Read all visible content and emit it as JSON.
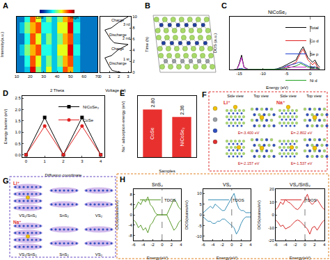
{
  "chart_data": [
    {
      "panel": "A",
      "type": "heatmap",
      "xlabel": "2 Theta",
      "ylabel": "Intensity(a.u.)",
      "x": [
        10,
        14,
        18,
        22,
        26,
        30,
        34,
        38,
        42,
        46,
        50,
        54,
        60,
        66,
        70
      ],
      "y": [
        0,
        2,
        4,
        6,
        8,
        10
      ],
      "z": [
        [
          2,
          2,
          3,
          9,
          5,
          3,
          6,
          3,
          4,
          8,
          7,
          3,
          2,
          2,
          2
        ],
        [
          2,
          2,
          4,
          8,
          6,
          3,
          5,
          3,
          5,
          7,
          8,
          3,
          2,
          2,
          2
        ],
        [
          2,
          3,
          5,
          7,
          8,
          4,
          4,
          3,
          6,
          6,
          9,
          4,
          2,
          2,
          2
        ],
        [
          2,
          2,
          4,
          8,
          6,
          3,
          5,
          3,
          5,
          7,
          8,
          3,
          2,
          2,
          2
        ],
        [
          2,
          3,
          5,
          7,
          8,
          4,
          4,
          3,
          6,
          6,
          9,
          4,
          2,
          2,
          2
        ],
        [
          2,
          2,
          4,
          8,
          6,
          3,
          5,
          3,
          5,
          7,
          8,
          3,
          2,
          2,
          2
        ]
      ],
      "xlim": [
        10,
        70
      ],
      "xticks": [
        10,
        20,
        30,
        40,
        50,
        60,
        70
      ],
      "ylim": [
        0,
        10
      ],
      "tick_labels": "x",
      "colorbar": {
        "range": [
          0,
          10
        ],
        "ticks": [
          {
            "value": 0,
            "label": "Low"
          },
          {
            "value": 10,
            "label": "High"
          }
        ]
      }
    },
    {
      "type": "line",
      "xlabel": "Voltage (V)",
      "ylabel": "Time (h)",
      "xlim": [
        0,
        3.3
      ],
      "xticks": [
        0,
        1,
        2,
        3
      ],
      "ylim": [
        0,
        10
      ],
      "yticks": [
        0,
        2,
        4,
        6,
        8,
        10
      ],
      "series": [
        {
          "color": "#000000",
          "x": [
            2.2,
            1.3,
            1.0,
            0.7,
            0.5,
            1.2,
            1.9,
            3.0,
            1.5,
            1.1,
            0.7,
            0.5,
            1.2,
            2.0,
            3.0
          ],
          "y": [
            0,
            0.3,
            1,
            2,
            2.6,
            3,
            4,
            5,
            5.3,
            6,
            7,
            7.6,
            8,
            9,
            10
          ]
        }
      ],
      "annotations": [
        {
          "text": "Charge",
          "x": 1.9,
          "y": 9.4
        },
        {
          "text": "Discharge",
          "x": 1.9,
          "y": 6.8
        },
        {
          "text": "Charge",
          "x": 1.9,
          "y": 4.3
        },
        {
          "text": "Discharge",
          "x": 1.9,
          "y": 1.6
        },
        {
          "text": "3 rd",
          "x": 2.8,
          "y": 8.6
        },
        {
          "text": "2 nd",
          "x": 2.8,
          "y": 6.1
        },
        {
          "text": "1 st",
          "x": 2.8,
          "y": 2.4
        }
      ]
    },
    {
      "panel": "C",
      "type": "line",
      "title": "NiCoSe₂",
      "xlabel": "Energy (eV)",
      "ylabel": "DOS (a.u.)",
      "x": [
        -16,
        -15.5,
        -15,
        -14.5,
        -14,
        -13,
        -12,
        -10,
        -8,
        -7,
        -6,
        -5,
        -4,
        -3,
        -2.5,
        -2,
        -1.5,
        -1,
        -0.5,
        0,
        0.5,
        1,
        1.5,
        2
      ],
      "series": [
        {
          "name": "Total",
          "color": "#000000",
          "values": [
            0,
            0,
            2.5,
            6,
            1,
            0,
            0,
            0,
            0,
            0.3,
            1,
            2,
            3,
            4,
            6,
            8,
            9.5,
            7,
            5,
            4,
            3,
            4,
            2,
            1
          ]
        },
        {
          "name": "Co d",
          "color": "#e02020",
          "values": [
            0,
            0,
            0,
            0.2,
            0,
            0,
            0,
            0,
            0,
            0.1,
            0.5,
            1,
            2,
            3,
            5,
            7,
            8.5,
            6,
            4,
            3,
            2,
            3,
            1,
            0.5
          ]
        },
        {
          "name": "Se p",
          "color": "#2040d0",
          "values": [
            0,
            0,
            0.3,
            0.5,
            0.1,
            0,
            0,
            0,
            0,
            0.2,
            0.5,
            1.5,
            2,
            2.5,
            3,
            3,
            2.5,
            2,
            1.5,
            1,
            1,
            1.2,
            0.5,
            0.3
          ]
        },
        {
          "name": "Se s",
          "color": "#d020d0",
          "values": [
            0,
            0,
            2,
            5,
            0.8,
            0,
            0,
            0,
            0,
            0,
            0,
            0,
            0,
            0,
            0,
            0,
            0,
            0,
            0,
            0,
            0,
            0,
            0,
            0
          ]
        },
        {
          "name": "Ni d",
          "color": "#20a020",
          "values": [
            0,
            0,
            0,
            0.1,
            0,
            0,
            0,
            0,
            0,
            0.1,
            0.3,
            0.5,
            1,
            1.5,
            2,
            2.5,
            2,
            1.5,
            1,
            0.8,
            0.5,
            0.6,
            0.3,
            0.2
          ]
        }
      ],
      "xlim": [
        -17,
        3
      ],
      "xticks": [
        -15,
        -10,
        -5,
        0
      ],
      "ylim": [
        0,
        22
      ],
      "tick_labels": "x",
      "legend": "top right",
      "reference_line": 0
    },
    {
      "panel": "D",
      "type": "line",
      "xlabel": "Diffusion coordinate",
      "ylabel": "Energy barrier (eV)",
      "x": [
        0,
        1,
        2,
        3,
        4
      ],
      "series": [
        {
          "name": "NiCoSe₂",
          "color": "#000000",
          "marker": "square",
          "values": [
            0,
            1.65,
            0,
            1.65,
            0
          ]
        },
        {
          "name": "CoSe",
          "color": "#e02020",
          "marker": "circle",
          "values": [
            0,
            1.27,
            0,
            1.27,
            0
          ]
        }
      ],
      "xlim": [
        -0.2,
        4.2
      ],
      "xticks": [
        0,
        1,
        2,
        3,
        4
      ],
      "ylim": [
        -0.1,
        2.6
      ],
      "yticks": [
        {
          "value": 0,
          "label": "0.0"
        },
        {
          "value": 0.5,
          "label": "0.5"
        },
        {
          "value": 1,
          "label": "1.0"
        },
        {
          "value": 1.5,
          "label": "1.5"
        },
        {
          "value": 2,
          "label": "2.0"
        },
        {
          "value": 2.5,
          "label": "2.5"
        }
      ],
      "legend": "top right"
    },
    {
      "panel": "E",
      "type": "bar",
      "xlabel": "Samples",
      "ylabel": "Na⁺ adsorption energy (eV)",
      "categories": [
        "CoSe",
        "NiCoSe₂"
      ],
      "values": [
        2.8,
        2.36
      ],
      "value_labels": [
        "2.80",
        "2.36"
      ],
      "color": "#e8312f",
      "ylim": [
        0,
        3.6
      ],
      "tick_labels": false,
      "data_labels": true
    },
    {
      "panel": "H",
      "type": "line",
      "title": "SnS₂",
      "xlabel": "Energy(eV)",
      "ylabel": "DOS(states/eV)",
      "x": [
        -6,
        -5.5,
        -5,
        -4.5,
        -4,
        -3.5,
        -3,
        -2.5,
        -2,
        -1.5,
        -1,
        -0.5,
        0,
        0.5,
        1,
        1.5,
        2,
        2.5,
        3,
        3.5,
        4
      ],
      "series": [
        {
          "name": "TDOS",
          "color": "#5a9a2a",
          "values": [
            2,
            3,
            5,
            4,
            6,
            5,
            7,
            4,
            3,
            1,
            0,
            0,
            0,
            0,
            0,
            2,
            4,
            6,
            5,
            3,
            2
          ],
          "values_down": [
            -2,
            -3,
            -5,
            -4,
            -6,
            -5,
            -7,
            -4,
            -3,
            -1,
            0,
            0,
            0,
            0,
            0,
            -2,
            -4,
            -6,
            -5,
            -3,
            -2
          ]
        }
      ],
      "xlim": [
        -6,
        4
      ],
      "xticks": [
        -6,
        -4,
        -2,
        0,
        2,
        4
      ],
      "ylim": [
        -10,
        10
      ],
      "yticks": [
        -8,
        -4,
        0,
        4,
        8
      ],
      "legend": "top right",
      "reference_line": 0
    },
    {
      "type": "line",
      "title": "VS₂",
      "xlabel": "Energy(eV)",
      "ylabel": "DOS(states/eV)",
      "x": [
        -6,
        -5.5,
        -5,
        -4.5,
        -4,
        -3.5,
        -3,
        -2.5,
        -2,
        -1.5,
        -1,
        -0.5,
        0,
        0.5,
        1,
        1.5,
        2,
        2.5,
        3,
        3.5,
        4
      ],
      "series": [
        {
          "name": "TDOS",
          "color": "#3a8fb7",
          "values": [
            1,
            2,
            3,
            4,
            3,
            5,
            4,
            3,
            2,
            2,
            4,
            6,
            8,
            10,
            6,
            3,
            2,
            2,
            1,
            1,
            1
          ],
          "values_down": [
            -1,
            -2,
            -3,
            -3,
            -4,
            -4,
            -3,
            -3,
            -2,
            -2,
            -3,
            -4,
            -5,
            -6,
            -9,
            -7,
            -4,
            -2,
            -1,
            -1,
            -1
          ]
        }
      ],
      "xlim": [
        -6,
        4
      ],
      "xticks": [
        -6,
        -4,
        -2,
        0,
        2,
        4
      ],
      "ylim": [
        -12,
        12
      ],
      "yticks": [
        -10,
        -5,
        0,
        5,
        10
      ],
      "legend": "top left",
      "reference_line": 0
    },
    {
      "type": "line",
      "title": "VS₂/SnS₂",
      "xlabel": "Energy(eV)",
      "ylabel": "DOS(states/eV)",
      "x": [
        -6,
        -5.5,
        -5,
        -4.5,
        -4,
        -3.5,
        -3,
        -2.5,
        -2,
        -1.5,
        -1,
        -0.5,
        0,
        0.5,
        1,
        1.5,
        2,
        2.5,
        3,
        3.5,
        4
      ],
      "series": [
        {
          "name": "TDOS",
          "color": "#d62728",
          "values": [
            4,
            6,
            10,
            8,
            12,
            10,
            9,
            7,
            5,
            4,
            6,
            9,
            12,
            16,
            10,
            8,
            10,
            12,
            9,
            6,
            4
          ],
          "values_down": [
            -4,
            -6,
            -9,
            -8,
            -11,
            -10,
            -9,
            -7,
            -5,
            -4,
            -5,
            -7,
            -9,
            -11,
            -15,
            -10,
            -9,
            -12,
            -9,
            -6,
            -4
          ]
        }
      ],
      "xlim": [
        -6,
        4
      ],
      "xticks": [
        -6,
        -4,
        -2,
        0,
        2,
        4
      ],
      "ylim": [
        -20,
        20
      ],
      "yticks": [
        -20,
        -10,
        0,
        10,
        20
      ],
      "legend": "top left",
      "reference_line": 0
    }
  ],
  "diagrams": [
    {
      "panel": "B"
    },
    {
      "panel": "F",
      "views": [
        "Side view",
        "Top view"
      ],
      "columns": [
        {
          "ion": "Li⁺",
          "energies": [
            "E=-3.400 eV",
            "E=-2.157 eV"
          ]
        },
        {
          "ion": "Na⁺",
          "energies": [
            "E=-2.802 eV",
            "E=-1.537 eV"
          ]
        }
      ]
    },
    {
      "panel": "G",
      "rows": [
        {
          "ion": "Li⁺",
          "labels": [
            "VS₂/SnS₂",
            "SnS₂",
            "VS₂"
          ]
        },
        {
          "ion": "Na⁺",
          "labels": [
            "VS₂/SnS₂",
            "SnS₂",
            "VS₂"
          ]
        }
      ]
    }
  ]
}
